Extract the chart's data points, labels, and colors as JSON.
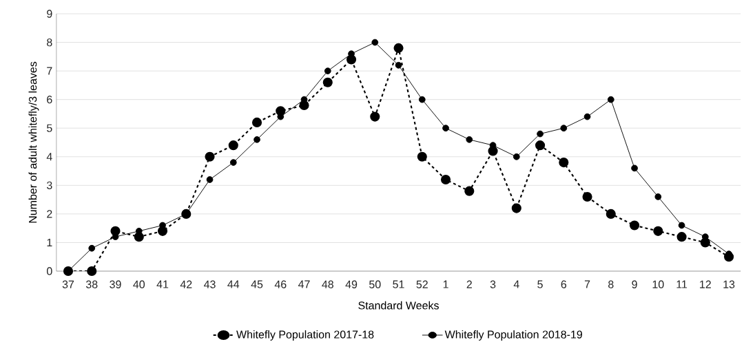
{
  "chart_data": {
    "type": "line",
    "xlabel": "Standard Weeks",
    "ylabel": "Number of  adult whitefly/3 leaves",
    "categories": [
      "37",
      "38",
      "39",
      "40",
      "41",
      "42",
      "43",
      "44",
      "45",
      "46",
      "47",
      "48",
      "49",
      "50",
      "51",
      "52",
      "1",
      "2",
      "3",
      "4",
      "5",
      "6",
      "7",
      "8",
      "9",
      "10",
      "11",
      "12",
      "13"
    ],
    "series": [
      {
        "name": "Whitefly Population 2017-18",
        "color": "#000000",
        "line_style": "dashed",
        "values": [
          0,
          0,
          1.4,
          1.2,
          1.4,
          2,
          4,
          4.4,
          5.2,
          5.6,
          5.8,
          6.6,
          7.4,
          5.4,
          7.8,
          4,
          3.2,
          2.8,
          4.2,
          2.2,
          4.4,
          3.8,
          2.6,
          2,
          1.6,
          1.4,
          1.2,
          1.0,
          0.5
        ]
      },
      {
        "name": "Whitefly Population 2018-19",
        "color": "#000000",
        "line_style": "solid",
        "values": [
          0,
          0.8,
          1.2,
          1.4,
          1.6,
          2,
          3.2,
          3.8,
          4.6,
          5.4,
          6,
          7,
          7.6,
          8,
          7.2,
          6,
          5,
          4.6,
          4.4,
          4,
          4.8,
          5,
          5.4,
          6,
          3.6,
          2.6,
          1.6,
          1.2,
          0.6
        ]
      }
    ],
    "ylim": [
      0,
      9
    ],
    "yticks": [
      0,
      1,
      2,
      3,
      4,
      5,
      6,
      7,
      8,
      9
    ],
    "grid": "y",
    "legend": "bottom",
    "marker": "circle"
  }
}
